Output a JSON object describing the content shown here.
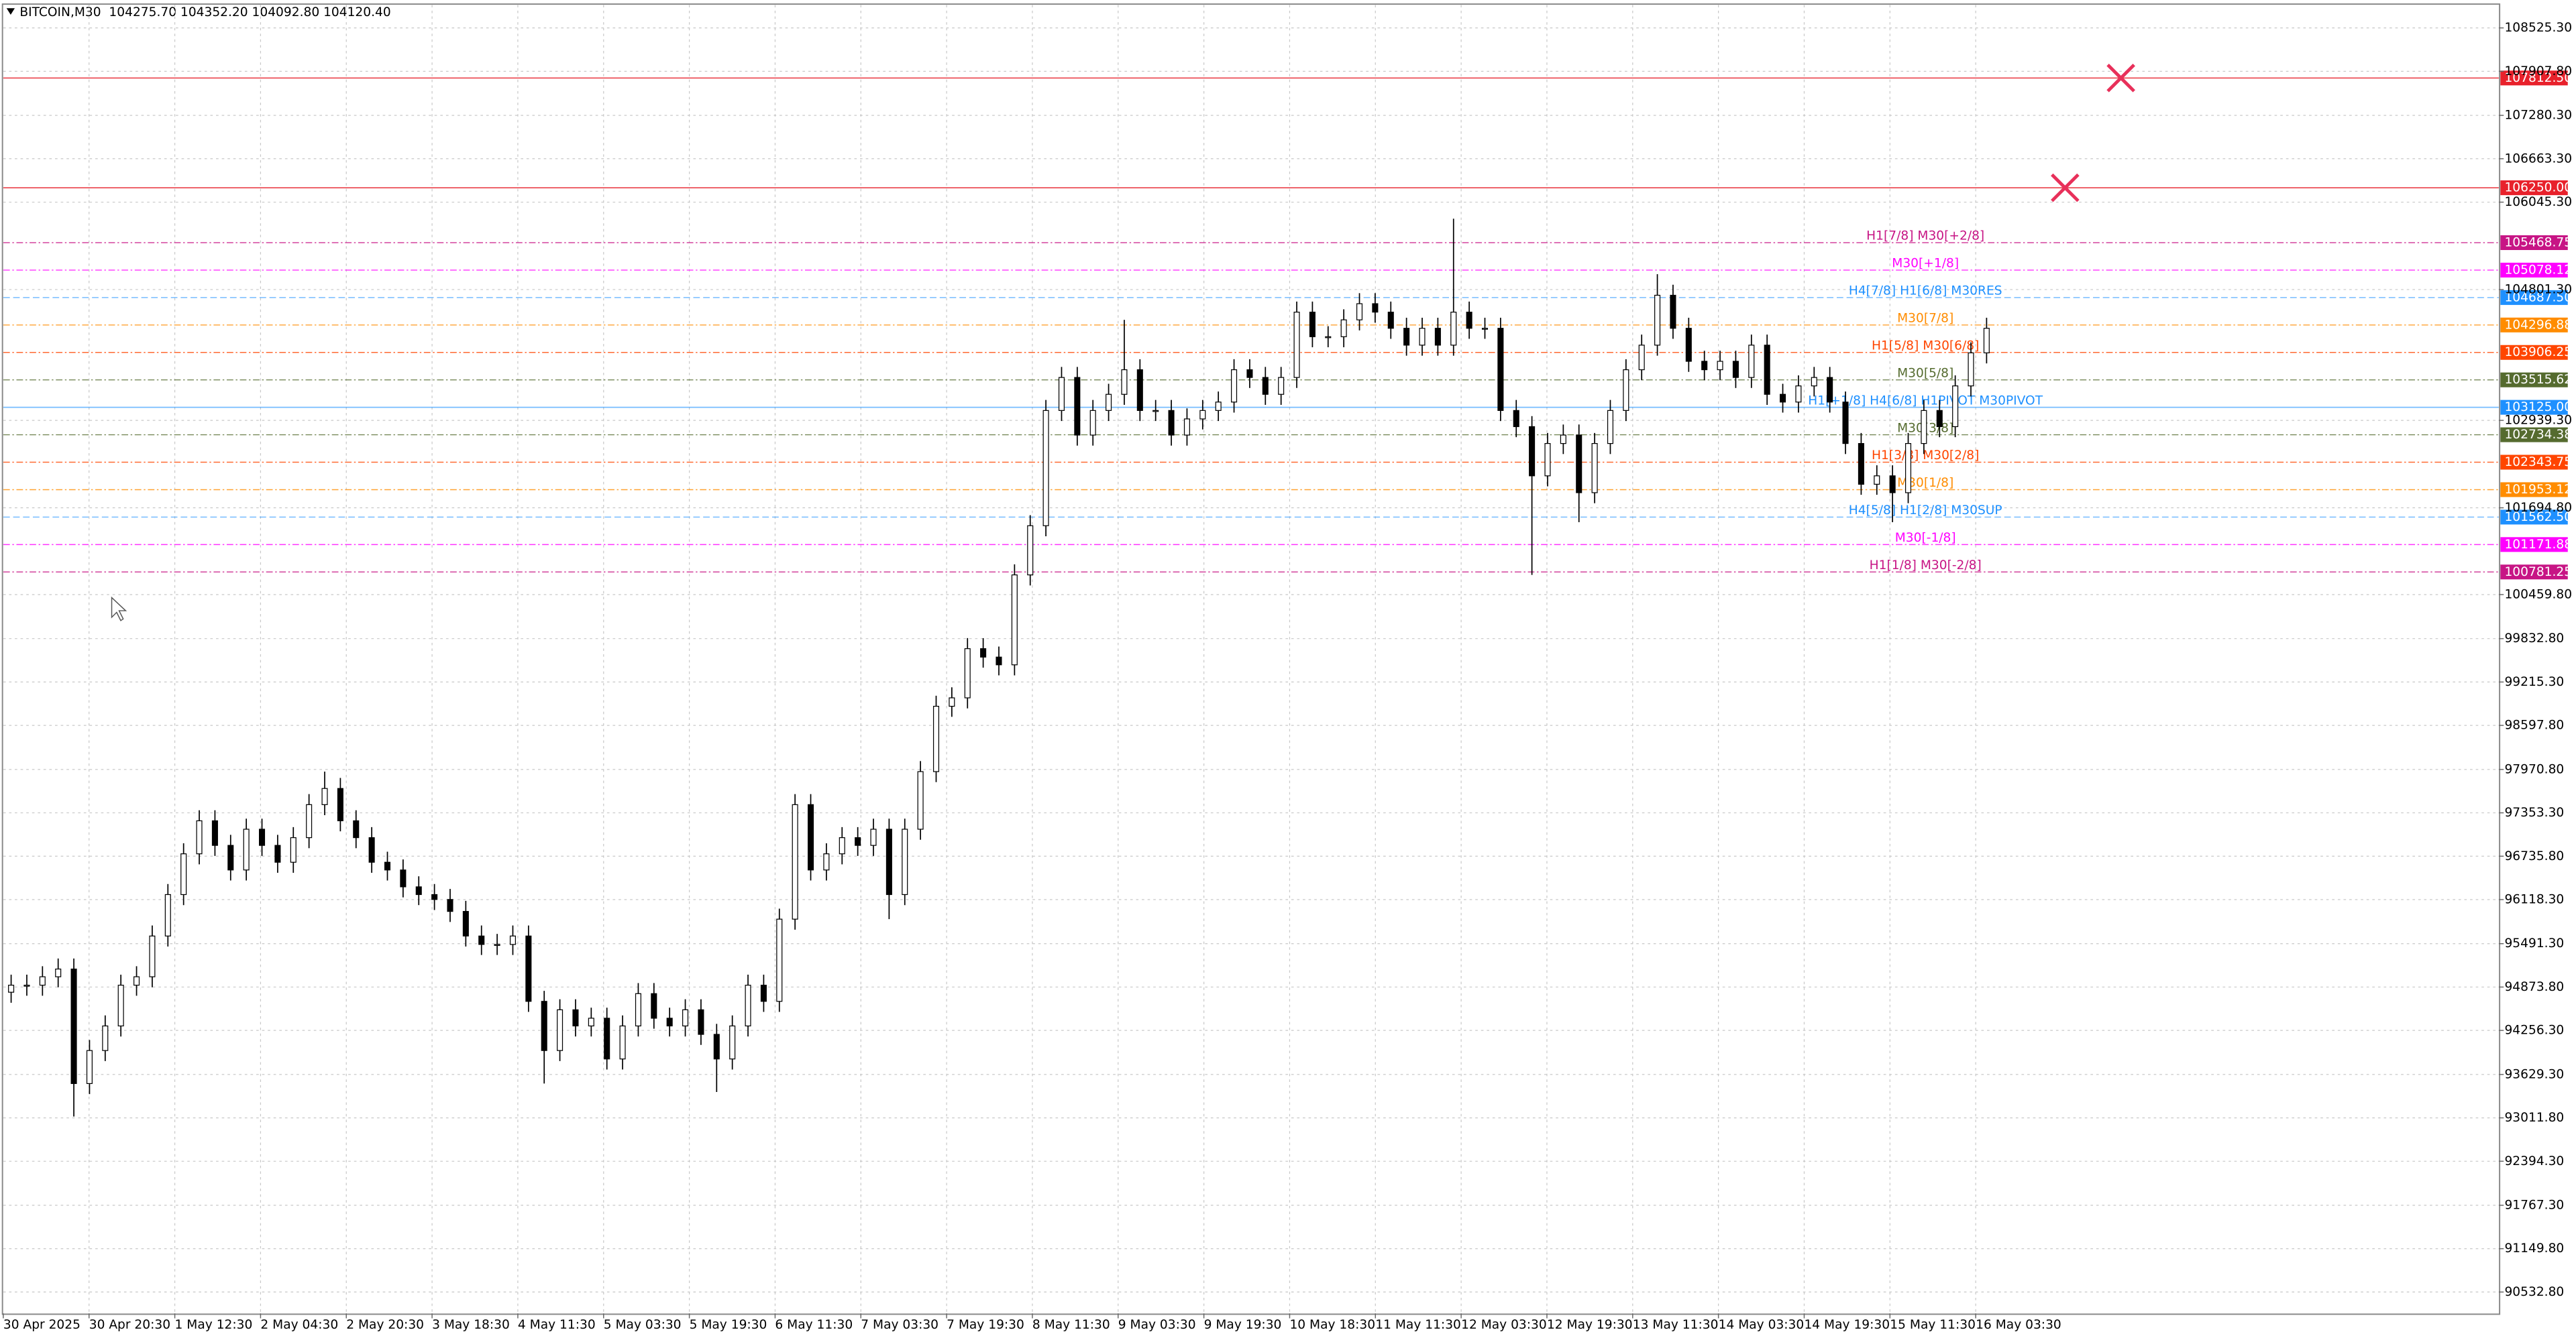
{
  "chart_data": {
    "type": "candlestick",
    "title": "BITCOIN,M30  104275.70 104352.20 104092.80 104120.40",
    "categories": [
      "30 Apr 2025",
      "30 Apr 20:30",
      "1 May 12:30",
      "2 May 04:30",
      "2 May 20:30",
      "3 May 18:30",
      "4 May 11:30",
      "5 May 03:30",
      "5 May 19:30",
      "6 May 11:30",
      "7 May 03:30",
      "7 May 19:30",
      "8 May 11:30",
      "9 May 03:30",
      "9 May 19:30",
      "10 May 18:30",
      "11 May 11:30",
      "12 May 03:30",
      "12 May 19:30",
      "13 May 11:30",
      "14 May 03:30",
      "14 May 19:30",
      "15 May 11:30",
      "16 May 03:30"
    ],
    "open": [
      94800,
      94900,
      94900,
      95020,
      95130,
      93500,
      93970,
      94320,
      94900,
      95020,
      95600,
      96190,
      96770,
      97240,
      96890,
      96540,
      97120,
      96890,
      96650,
      97000,
      97470,
      97700,
      97240,
      97000,
      96650,
      96540,
      96300,
      96190,
      96120,
      95950,
      95600,
      95480,
      95480,
      95600,
      94670,
      93970,
      94550,
      94320,
      94430,
      93850,
      94320,
      94780,
      94430,
      94320,
      94550,
      94200,
      93850,
      94320,
      94900,
      94670,
      95840,
      97470,
      96540,
      96770,
      97000,
      96890,
      97120,
      96190,
      97120,
      97940,
      98870,
      98990,
      99690,
      99570,
      99460,
      100740,
      101440,
      103080,
      103550,
      102730,
      103080,
      103310,
      103660,
      103080,
      103080,
      102730,
      102960,
      103080,
      103200,
      103660,
      103550,
      103310,
      103550,
      104480,
      104130,
      104130,
      104370,
      104600,
      104480,
      104250,
      104010,
      104250,
      104010,
      104480,
      104250,
      104250,
      103080,
      102850,
      102150,
      102610,
      102730,
      101910,
      102610,
      103080,
      103660,
      104010,
      104720,
      104250,
      103780,
      103660,
      103780,
      103550,
      104010,
      103310,
      103200,
      103430,
      103550,
      103200,
      102610,
      102030,
      102150,
      101910,
      102610,
      103080,
      102850,
      103430,
      103900
    ],
    "high": [
      95050,
      95050,
      95170,
      95280,
      95280,
      94120,
      94470,
      95050,
      95170,
      95750,
      96340,
      96920,
      97390,
      97390,
      97040,
      97270,
      97270,
      97040,
      97150,
      97620,
      97940,
      97850,
      97390,
      97150,
      96800,
      96690,
      96450,
      96340,
      96270,
      96100,
      95750,
      95630,
      95750,
      95750,
      94820,
      94700,
      94700,
      94580,
      94580,
      94470,
      94930,
      94930,
      94580,
      94700,
      94700,
      94350,
      94470,
      95050,
      95050,
      95990,
      97620,
      97620,
      96920,
      97150,
      97150,
      97270,
      97270,
      97270,
      98090,
      99020,
      99140,
      99840,
      99840,
      99720,
      100890,
      101590,
      103230,
      103700,
      103700,
      103230,
      103460,
      104370,
      103810,
      103230,
      103230,
      103110,
      103230,
      103350,
      103810,
      103810,
      103700,
      103700,
      104630,
      104630,
      104280,
      104520,
      104750,
      104750,
      104630,
      104400,
      104400,
      104400,
      105810,
      104630,
      104400,
      104400,
      103230,
      103000,
      102760,
      102880,
      102880,
      102760,
      103230,
      103810,
      104160,
      105020,
      104870,
      104400,
      103930,
      103930,
      103930,
      104160,
      104160,
      103460,
      103580,
      103700,
      103700,
      103350,
      102760,
      102300,
      102300,
      102760,
      103230,
      103230,
      103580,
      104050,
      104400
    ],
    "low": [
      94650,
      94750,
      94750,
      94870,
      93030,
      93350,
      93820,
      94170,
      94750,
      94870,
      95450,
      96040,
      96620,
      96740,
      96390,
      96390,
      96740,
      96500,
      96500,
      96850,
      97320,
      97090,
      96850,
      96500,
      96390,
      96150,
      96040,
      95970,
      95800,
      95450,
      95330,
      95330,
      95330,
      94520,
      93500,
      93820,
      94170,
      94170,
      93700,
      93700,
      94170,
      94280,
      94170,
      94170,
      94050,
      93380,
      93700,
      94170,
      94520,
      94520,
      95690,
      96390,
      96390,
      96620,
      96740,
      96740,
      95840,
      96040,
      96970,
      97790,
      98720,
      98840,
      99420,
      99310,
      99310,
      100590,
      101290,
      102930,
      102580,
      102580,
      102930,
      103160,
      102930,
      102930,
      102580,
      102580,
      102810,
      102930,
      103050,
      103400,
      103160,
      103160,
      103400,
      103980,
      103980,
      103980,
      104220,
      104330,
      104100,
      103860,
      103860,
      103860,
      103860,
      104100,
      104100,
      102930,
      102700,
      100740,
      102000,
      102460,
      101490,
      101760,
      102460,
      102930,
      103510,
      103860,
      104100,
      103630,
      103510,
      103510,
      103400,
      103400,
      103160,
      103050,
      103050,
      103280,
      103050,
      102460,
      101880,
      101880,
      101490,
      101760,
      102460,
      102700,
      102700,
      103280,
      103750
    ],
    "close": [
      94900,
      94900,
      95020,
      95130,
      93500,
      93970,
      94320,
      94900,
      95020,
      95600,
      96190,
      96770,
      97240,
      96890,
      96540,
      97120,
      96890,
      96650,
      97000,
      97470,
      97700,
      97240,
      97000,
      96650,
      96540,
      96300,
      96190,
      96120,
      95950,
      95600,
      95480,
      95480,
      95600,
      94670,
      93970,
      94550,
      94320,
      94430,
      93850,
      94320,
      94780,
      94430,
      94320,
      94550,
      94200,
      93850,
      94320,
      94900,
      94670,
      95840,
      97470,
      96540,
      96770,
      97000,
      96890,
      97120,
      96190,
      97120,
      97940,
      98870,
      98990,
      99690,
      99570,
      99460,
      100740,
      101440,
      103080,
      103550,
      102730,
      103080,
      103310,
      103660,
      103080,
      103080,
      102730,
      102960,
      103080,
      103200,
      103660,
      103550,
      103310,
      103550,
      104480,
      104130,
      104130,
      104370,
      104600,
      104480,
      104250,
      104010,
      104250,
      104010,
      104480,
      104250,
      104250,
      103080,
      102850,
      102150,
      102610,
      102730,
      101910,
      102610,
      103080,
      103660,
      104010,
      104720,
      104250,
      103780,
      103660,
      103780,
      103550,
      104010,
      103310,
      103200,
      103430,
      103550,
      103200,
      102610,
      102030,
      102150,
      101910,
      102610,
      103080,
      102850,
      103430,
      103900,
      104250
    ],
    "colors": {
      "up": "#ffffff",
      "down": "#000000",
      "wick": "#000000",
      "outline": "#000000"
    },
    "ylim": [
      90228.9,
      108852.4
    ],
    "yticks": [
      {
        "value": 108525.3,
        "label": "108525.30"
      },
      {
        "value": 107907.8,
        "label": "107907.80"
      },
      {
        "value": 107280.3,
        "label": "107280.30"
      },
      {
        "value": 106663.3,
        "label": "106663.30"
      },
      {
        "value": 106045.3,
        "label": "106045.30"
      },
      {
        "value": 104801.3,
        "label": "104801.30"
      },
      {
        "value": 102939.3,
        "label": "102939.30"
      },
      {
        "value": 101694.8,
        "label": "101694.80"
      },
      {
        "value": 100459.8,
        "label": "100459.80"
      },
      {
        "value": 99832.8,
        "label": "99832.80"
      },
      {
        "value": 99215.3,
        "label": "99215.30"
      },
      {
        "value": 98597.8,
        "label": "98597.80"
      },
      {
        "value": 97970.8,
        "label": "97970.80"
      },
      {
        "value": 97353.3,
        "label": "97353.30"
      },
      {
        "value": 96735.8,
        "label": "96735.80"
      },
      {
        "value": 96118.3,
        "label": "96118.30"
      },
      {
        "value": 95491.3,
        "label": "95491.30"
      },
      {
        "value": 94873.8,
        "label": "94873.80"
      },
      {
        "value": 94256.3,
        "label": "94256.30"
      },
      {
        "value": 93629.3,
        "label": "93629.30"
      },
      {
        "value": 93011.8,
        "label": "93011.80"
      },
      {
        "value": 92394.3,
        "label": "92394.30"
      },
      {
        "value": 91767.3,
        "label": "91767.30"
      },
      {
        "value": 91149.8,
        "label": "91149.80"
      },
      {
        "value": 90532.8,
        "label": "90532.80"
      }
    ],
    "grid": true,
    "levels": [
      {
        "value": 107812.5,
        "value_label": "107812.50",
        "color": "#e8212b",
        "line": "solid"
      },
      {
        "value": 106250,
        "value_label": "106250.00",
        "color": "#e8212b",
        "line": "solid"
      },
      {
        "value": 105468.75,
        "value_label": "105468.75",
        "color": "#c71585",
        "line": "dashdot",
        "label": "H1[7/8] M30[+2/8]"
      },
      {
        "value": 105078.12,
        "value_label": "105078.12",
        "color": "#ff00ff",
        "line": "dashdot",
        "label": "M30[+1/8]"
      },
      {
        "value": 104687.5,
        "value_label": "104687.50",
        "color": "#1e90ff",
        "line": "dashed",
        "label": "H4[7/8] H1[6/8] M30RES"
      },
      {
        "value": 104296.88,
        "value_label": "104296.88",
        "color": "#ff8c00",
        "line": "dashdot",
        "label": "M30[7/8]"
      },
      {
        "value": 103906.25,
        "value_label": "103906.25",
        "color": "#ff4500",
        "line": "dashdot",
        "label": "H1[5/8] M30[6/8]"
      },
      {
        "value": 103515.62,
        "value_label": "103515.62",
        "color": "#556b2f",
        "line": "dashdot",
        "label": "M30[5/8]"
      },
      {
        "value": 103125,
        "value_label": "103125.00",
        "color": "#1e90ff",
        "line": "solid",
        "label": "H1[+1/8] H4[6/8] H1PIVOT M30PIVOT"
      },
      {
        "value": 102734.38,
        "value_label": "102734.38",
        "color": "#556b2f",
        "line": "dashdot",
        "label": "M30[3/8]"
      },
      {
        "value": 102343.75,
        "value_label": "102343.75",
        "color": "#ff4500",
        "line": "dashdot",
        "label": "H1[3/8] M30[2/8]"
      },
      {
        "value": 101953.12,
        "value_label": "101953.12",
        "color": "#ff8c00",
        "line": "dashdot",
        "label": "M30[1/8]"
      },
      {
        "value": 101562.5,
        "value_label": "101562.50",
        "color": "#1e90ff",
        "line": "dashed",
        "label": "H4[5/8] H1[2/8] M30SUP"
      },
      {
        "value": 101171.88,
        "value_label": "101171.88",
        "color": "#ff00ff",
        "line": "dashdot",
        "label": "M30[-1/8]"
      },
      {
        "value": 100781.25,
        "value_label": "100781.25",
        "color": "#c71585",
        "line": "dashdot",
        "label": "H1[1/8] M30[-2/8]"
      }
    ]
  }
}
